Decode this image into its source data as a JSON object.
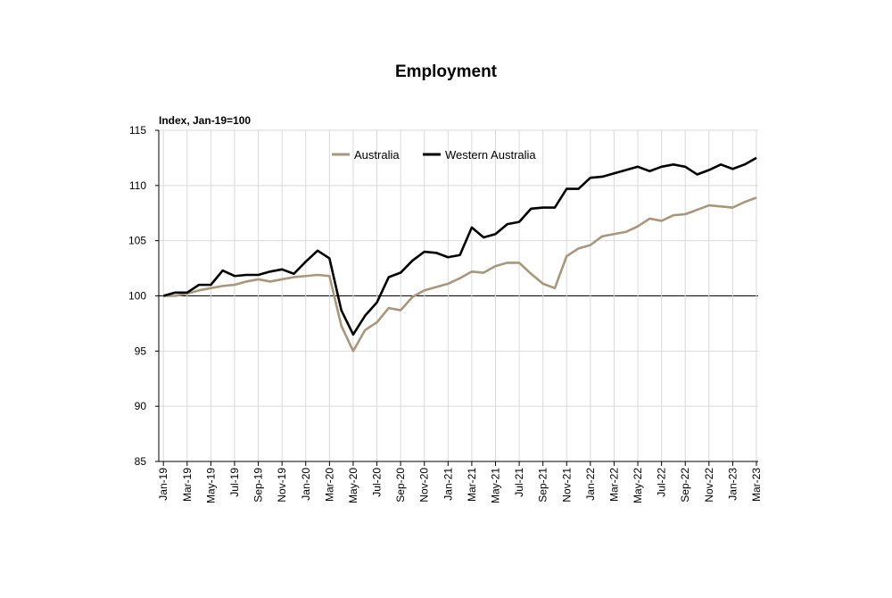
{
  "chart_data": {
    "type": "line",
    "title": "Employment",
    "ylabel": "Index, Jan-19=100",
    "xlabel": "",
    "ylim": [
      85,
      115
    ],
    "yticks": [
      85,
      90,
      95,
      100,
      105,
      110,
      115
    ],
    "grid": true,
    "legend_position": "top-center",
    "x": [
      "Jan-19",
      "Feb-19",
      "Mar-19",
      "Apr-19",
      "May-19",
      "Jun-19",
      "Jul-19",
      "Aug-19",
      "Sep-19",
      "Oct-19",
      "Nov-19",
      "Dec-19",
      "Jan-20",
      "Feb-20",
      "Mar-20",
      "Apr-20",
      "May-20",
      "Jun-20",
      "Jul-20",
      "Aug-20",
      "Sep-20",
      "Oct-20",
      "Nov-20",
      "Dec-20",
      "Jan-21",
      "Feb-21",
      "Mar-21",
      "Apr-21",
      "May-21",
      "Jun-21",
      "Jul-21",
      "Aug-21",
      "Sep-21",
      "Oct-21",
      "Nov-21",
      "Dec-21",
      "Jan-22",
      "Feb-22",
      "Mar-22",
      "Apr-22",
      "May-22",
      "Jun-22",
      "Jul-22",
      "Aug-22",
      "Sep-22",
      "Oct-22",
      "Nov-22",
      "Dec-22",
      "Jan-23",
      "Feb-23",
      "Mar-23"
    ],
    "xtick_labels": [
      "Jan-19",
      "Mar-19",
      "May-19",
      "Jul-19",
      "Sep-19",
      "Nov-19",
      "Jan-20",
      "Mar-20",
      "May-20",
      "Jul-20",
      "Sep-20",
      "Nov-20",
      "Jan-21",
      "Mar-21",
      "May-21",
      "Jul-21",
      "Sep-21",
      "Nov-21",
      "Jan-22",
      "Mar-22",
      "May-22",
      "Jul-22",
      "Sep-22",
      "Nov-22",
      "Jan-23",
      "Mar-23"
    ],
    "series": [
      {
        "name": "Australia",
        "color": "#a8977a",
        "values": [
          100.0,
          100.0,
          100.2,
          100.5,
          100.7,
          100.9,
          101.0,
          101.3,
          101.5,
          101.3,
          101.5,
          101.7,
          101.8,
          101.9,
          101.8,
          97.3,
          95.0,
          96.9,
          97.6,
          98.9,
          98.7,
          99.9,
          100.5,
          100.8,
          101.1,
          101.6,
          102.2,
          102.1,
          102.7,
          103.0,
          103.0,
          102.0,
          101.1,
          100.7,
          103.6,
          104.3,
          104.6,
          105.4,
          105.6,
          105.8,
          106.3,
          107.0,
          106.8,
          107.3,
          107.4,
          107.8,
          108.2,
          108.1,
          108.0,
          108.5,
          108.9
        ]
      },
      {
        "name": "Western Australia",
        "color": "#000000",
        "values": [
          100.0,
          100.3,
          100.3,
          101.0,
          101.0,
          102.3,
          101.8,
          101.9,
          101.9,
          102.2,
          102.4,
          102.0,
          103.1,
          104.1,
          103.4,
          98.7,
          96.5,
          98.2,
          99.4,
          101.7,
          102.1,
          103.2,
          104.0,
          103.9,
          103.5,
          103.7,
          106.2,
          105.3,
          105.6,
          106.5,
          106.7,
          107.9,
          108.0,
          108.0,
          109.7,
          109.7,
          110.7,
          110.8,
          111.1,
          111.4,
          111.7,
          111.3,
          111.7,
          111.9,
          111.7,
          111.0,
          111.4,
          111.9,
          111.5,
          111.9,
          112.5
        ]
      }
    ]
  }
}
